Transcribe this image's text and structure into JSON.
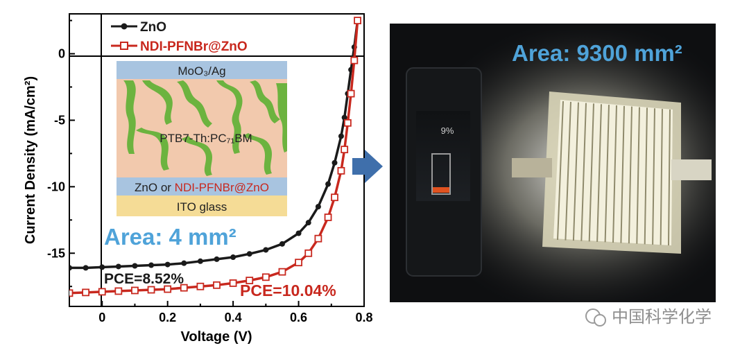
{
  "chart_data": {
    "type": "line",
    "xlabel": "Voltage (V)",
    "ylabel": "Current Density (mA/cm²)",
    "xlim": [
      -0.1,
      0.8
    ],
    "ylim": [
      -19,
      3
    ],
    "xticks": [
      "0",
      "0.2",
      "0.4",
      "0.6",
      "0.8"
    ],
    "yticks": [
      "0",
      "-5",
      "-10",
      "-15"
    ],
    "series": [
      {
        "name": "ZnO",
        "color": "#1a1a1a",
        "marker": "filled-circle",
        "x": [
          -0.1,
          -0.05,
          0.0,
          0.05,
          0.1,
          0.15,
          0.2,
          0.25,
          0.3,
          0.35,
          0.4,
          0.45,
          0.5,
          0.55,
          0.6,
          0.63,
          0.66,
          0.69,
          0.71,
          0.73,
          0.74,
          0.75,
          0.76,
          0.77,
          0.78
        ],
        "y": [
          -16.1,
          -16.1,
          -16.05,
          -16.0,
          -15.95,
          -15.9,
          -15.85,
          -15.75,
          -15.6,
          -15.45,
          -15.3,
          -15.05,
          -14.75,
          -14.3,
          -13.5,
          -12.7,
          -11.5,
          -9.8,
          -8.2,
          -6.2,
          -4.8,
          -3.0,
          -1.2,
          0.5,
          2.5
        ]
      },
      {
        "name": "NDI-PFNBr@ZnO",
        "color": "#c8281e",
        "marker": "open-square",
        "x": [
          -0.1,
          -0.05,
          0.0,
          0.05,
          0.1,
          0.15,
          0.2,
          0.25,
          0.3,
          0.35,
          0.4,
          0.45,
          0.5,
          0.55,
          0.6,
          0.63,
          0.66,
          0.69,
          0.71,
          0.73,
          0.74,
          0.75,
          0.76,
          0.77,
          0.78
        ],
        "y": [
          -18.0,
          -17.95,
          -17.9,
          -17.85,
          -17.8,
          -17.75,
          -17.7,
          -17.6,
          -17.5,
          -17.4,
          -17.25,
          -17.05,
          -16.8,
          -16.4,
          -15.7,
          -15.0,
          -13.9,
          -12.3,
          -10.8,
          -8.8,
          -7.2,
          -5.2,
          -3.0,
          -0.5,
          2.5
        ]
      }
    ],
    "legend_position": "top-left",
    "annotations": [
      "PCE=8.52%",
      "PCE=10.04%",
      "Area: 4 mm²"
    ]
  },
  "inset": {
    "layers": [
      "MoO₃/Ag",
      "PTB7-Th:PC₇₁BM",
      "ZnO",
      "ITO glass"
    ],
    "etl_prefix": "ZnO or ",
    "etl_alt": "NDI-PFNBr@ZnO"
  },
  "photo": {
    "area_label": "Area: 9300 mm²",
    "meter_reading": "9%",
    "watermark": "中国科学化学"
  },
  "colors": {
    "area_text": "#4fa3d9",
    "pce_red": "#c8281e",
    "arrow": "#3f6fab",
    "layer_top": "#a8c4e0",
    "layer_active": "#f2c9ad",
    "layer_green": "#6cb33f",
    "layer_ito": "#f5dc96"
  }
}
